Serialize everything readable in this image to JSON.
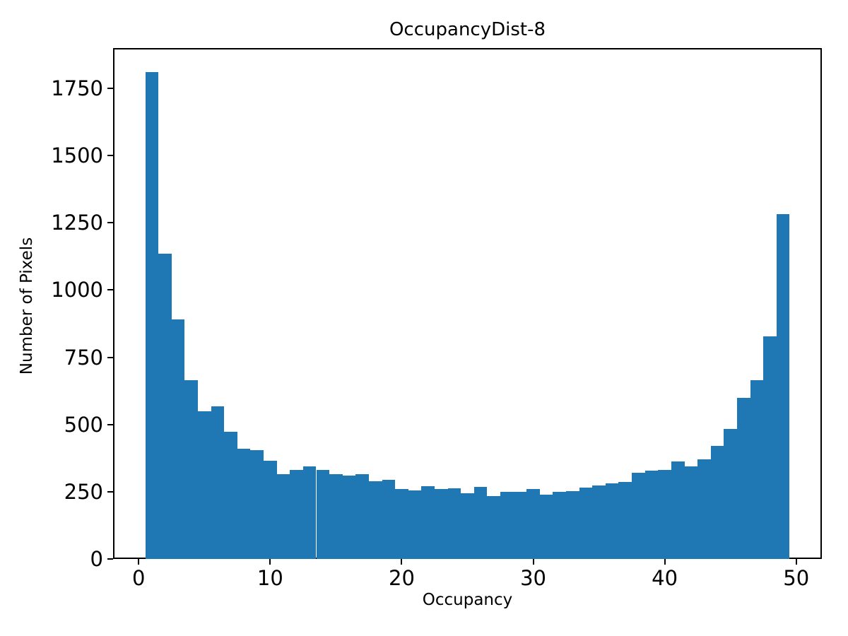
{
  "figure": {
    "title": "OccupancyDist-8",
    "xlabel": "Occupancy",
    "ylabel": "Number of Pixels"
  },
  "chart_data": {
    "type": "bar",
    "subtype": "histogram",
    "title": "OccupancyDist-8",
    "xlabel": "Occupancy",
    "ylabel": "Number of Pixels",
    "bar_color": "#1f77b4",
    "grid": false,
    "legend": false,
    "bin_start": 0.5,
    "bin_width": 1,
    "categories": [
      1,
      2,
      3,
      4,
      5,
      6,
      7,
      8,
      9,
      10,
      11,
      12,
      13,
      14,
      15,
      16,
      17,
      18,
      19,
      20,
      21,
      22,
      23,
      24,
      25,
      26,
      27,
      28,
      29,
      30,
      31,
      32,
      33,
      34,
      35,
      36,
      37,
      38,
      39,
      40,
      41,
      42,
      43,
      44,
      45,
      46,
      47,
      48,
      49
    ],
    "values": [
      1810,
      1135,
      890,
      665,
      548,
      568,
      473,
      410,
      405,
      365,
      315,
      330,
      345,
      330,
      315,
      310,
      315,
      290,
      295,
      260,
      255,
      270,
      260,
      264,
      245,
      268,
      233,
      250,
      250,
      260,
      238,
      250,
      253,
      266,
      273,
      280,
      286,
      320,
      328,
      330,
      362,
      344,
      370,
      420,
      483,
      599,
      664,
      827,
      1282
    ],
    "xlim": [
      -1.95,
      51.95
    ],
    "ylim": [
      0,
      1900
    ],
    "x_ticks": [
      0,
      10,
      20,
      30,
      40,
      50
    ],
    "y_ticks": [
      0,
      250,
      500,
      750,
      1000,
      1250,
      1500,
      1750
    ]
  }
}
